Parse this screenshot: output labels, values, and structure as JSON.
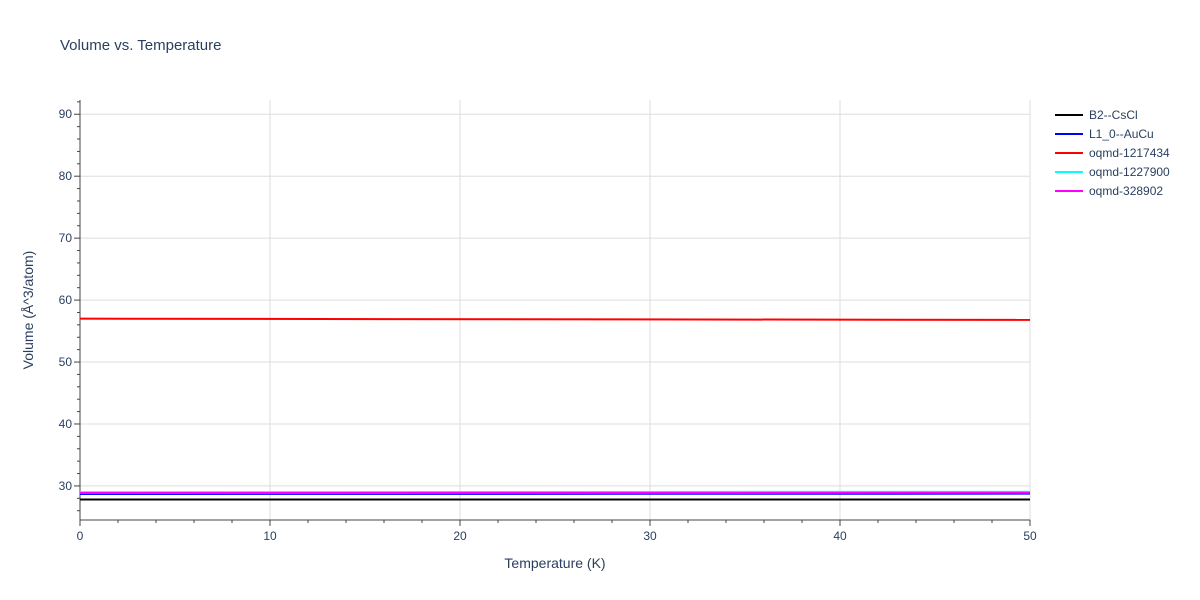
{
  "chart_data": {
    "type": "line",
    "title": "Volume vs. Temperature",
    "xlabel": "Temperature (K)",
    "ylabel": "Volume (Å^3/atom)",
    "xlim": [
      0,
      50
    ],
    "ylim": [
      24.5,
      92.3
    ],
    "xticks": [
      0,
      10,
      20,
      30,
      40,
      50
    ],
    "yticks": [
      30,
      40,
      50,
      60,
      70,
      80,
      90
    ],
    "grid": true,
    "legend_position": "top-right",
    "series": [
      {
        "name": "B2--CsCl",
        "color": "#000000",
        "x": [
          0,
          50
        ],
        "y": [
          27.8,
          27.8
        ]
      },
      {
        "name": "L1_0--AuCu",
        "color": "#0000ff",
        "x": [
          0,
          50
        ],
        "y": [
          28.7,
          28.75
        ]
      },
      {
        "name": "oqmd-1217434",
        "color": "#ff0000",
        "x": [
          0,
          50
        ],
        "y": [
          57.0,
          56.8
        ]
      },
      {
        "name": "oqmd-1227900",
        "color": "#00ffff",
        "x": [
          0,
          50
        ],
        "y": [
          29.0,
          29.05
        ]
      },
      {
        "name": "oqmd-328902",
        "color": "#ff00ff",
        "x": [
          0,
          50
        ],
        "y": [
          28.85,
          28.9
        ]
      }
    ]
  }
}
